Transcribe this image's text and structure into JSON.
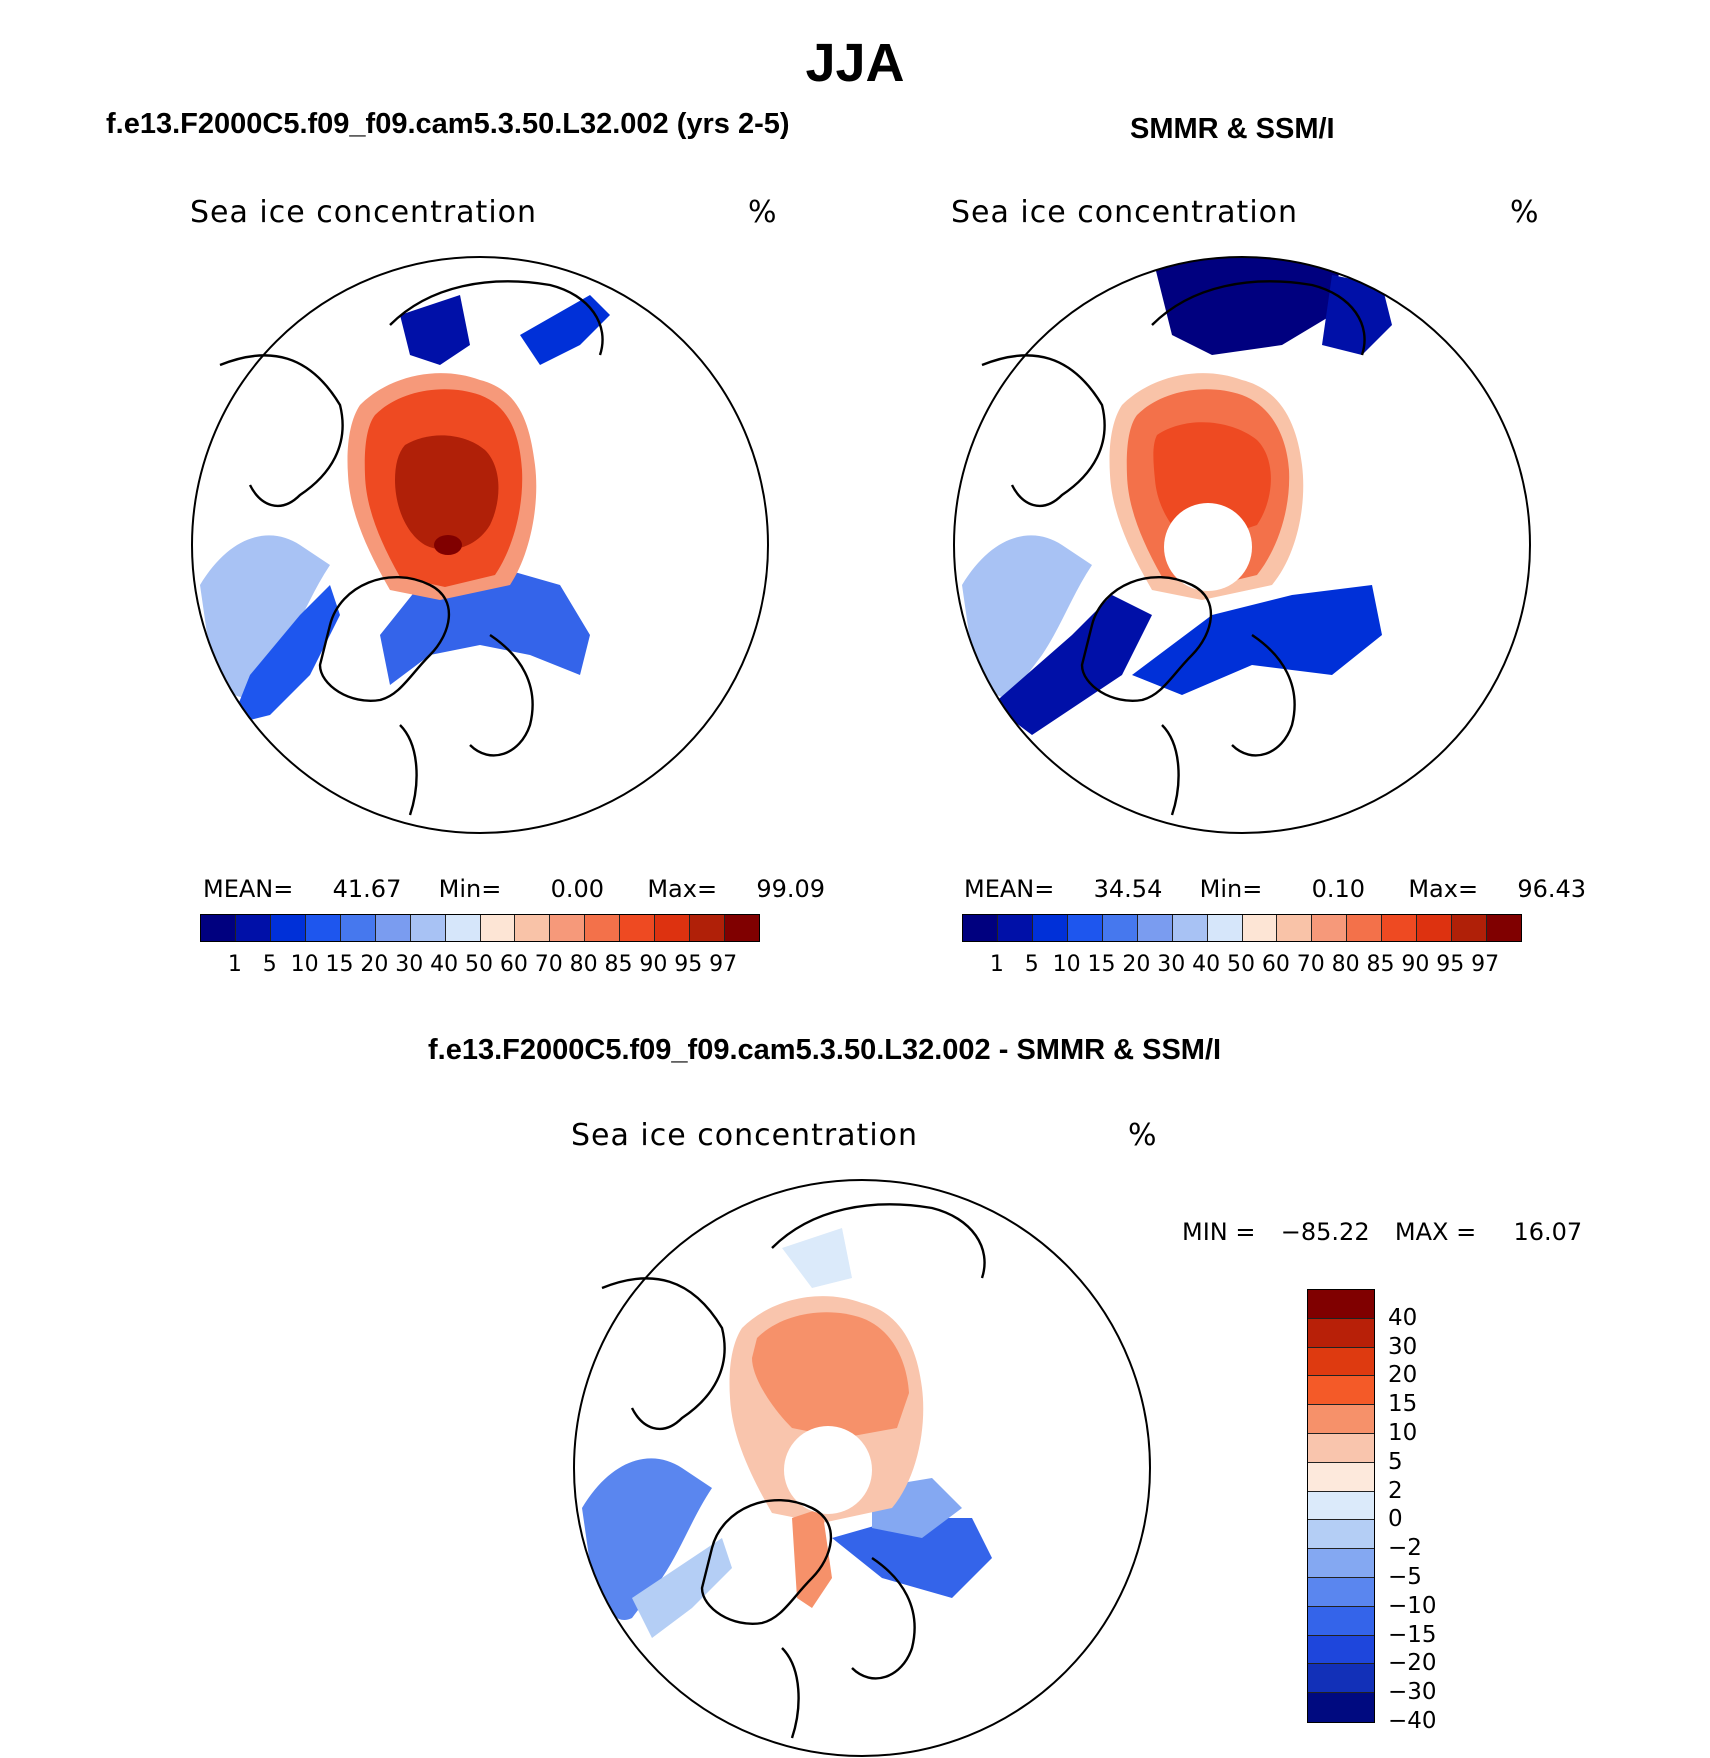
{
  "title": "JJA",
  "panels": {
    "model": {
      "case_title": "f.e13.F2000C5.f09_f09.cam5.3.50.L32.002 (yrs 2-5)",
      "var_label": "Sea ice concentration",
      "units": "%",
      "stats": {
        "mean_label": "MEAN=",
        "mean": "41.67",
        "min_label": "Min=",
        "min": "0.00",
        "max_label": "Max=",
        "max": "99.09"
      }
    },
    "obs": {
      "case_title": "SMMR & SSM/I",
      "var_label": "Sea ice concentration",
      "units": "%",
      "stats": {
        "mean_label": "MEAN=",
        "mean": "34.54",
        "min_label": "Min=",
        "min": "0.10",
        "max_label": "Max=",
        "max": "96.43"
      }
    },
    "diff": {
      "case_title": "f.e13.F2000C5.f09_f09.cam5.3.50.L32.002 - SMMR & SSM/I",
      "var_label": "Sea ice concentration",
      "units": "%",
      "minmax": {
        "min_label": "MIN =",
        "min": "−85.22",
        "max_label": "MAX =",
        "max": "16.07"
      }
    }
  },
  "colorbar_abs": {
    "colors": [
      "#00007f",
      "#0010a8",
      "#0030d8",
      "#1e56ee",
      "#4678ee",
      "#7a9cf0",
      "#a8c2f4",
      "#d6e6fa",
      "#fde5d5",
      "#f9c3a8",
      "#f6997a",
      "#f3714a",
      "#ee4a22",
      "#dd3210",
      "#b02008",
      "#800000"
    ],
    "ticks": [
      "1",
      "5",
      "10",
      "15",
      "20",
      "30",
      "40",
      "50",
      "60",
      "70",
      "80",
      "85",
      "90",
      "95",
      "97"
    ]
  },
  "colorbar_diff": {
    "colors": [
      "#800000",
      "#b82008",
      "#de3a10",
      "#f45a28",
      "#f6916a",
      "#f9c5ad",
      "#fde9dc",
      "#dbeafa",
      "#b4cef5",
      "#84a8f2",
      "#5a86ef",
      "#3464ea",
      "#1e46dc",
      "#1230b8",
      "#000a80"
    ],
    "ticks": [
      "40",
      "30",
      "20",
      "15",
      "10",
      "5",
      "2",
      "0",
      "−2",
      "−5",
      "−10",
      "−15",
      "−20",
      "−30",
      "−40"
    ]
  },
  "chart_data": [
    {
      "type": "heatmap",
      "title": "Sea ice concentration (%) - f.e13.F2000C5.f09_f09.cam5.3.50.L32.002 (yrs 2-5)",
      "projection": "north polar stereographic",
      "levels": [
        1,
        5,
        10,
        15,
        20,
        30,
        40,
        50,
        60,
        70,
        80,
        85,
        90,
        95,
        97
      ],
      "mean": 41.67,
      "min": 0.0,
      "max": 99.09
    },
    {
      "type": "heatmap",
      "title": "Sea ice concentration (%) - SMMR & SSM/I",
      "projection": "north polar stereographic",
      "levels": [
        1,
        5,
        10,
        15,
        20,
        30,
        40,
        50,
        60,
        70,
        80,
        85,
        90,
        95,
        97
      ],
      "mean": 34.54,
      "min": 0.1,
      "max": 96.43
    },
    {
      "type": "heatmap",
      "title": "Sea ice concentration (%) - difference",
      "projection": "north polar stereographic",
      "levels": [
        -40,
        -30,
        -20,
        -15,
        -10,
        -5,
        -2,
        0,
        2,
        5,
        10,
        15,
        20,
        30,
        40
      ],
      "min": -85.22,
      "max": 16.07
    }
  ]
}
